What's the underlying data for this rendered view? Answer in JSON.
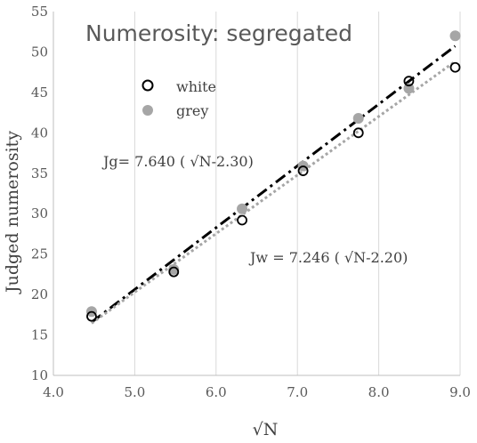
{
  "chart_data": {
    "type": "scatter",
    "title": "Numerosity: segregated",
    "xlabel": "√N",
    "ylabel": "Judged numerosity",
    "xlim": [
      4.0,
      9.0
    ],
    "ylim": [
      10,
      55
    ],
    "xticks": [
      "4.0",
      "5.0",
      "6.0",
      "7.0",
      "8.0",
      "9.0"
    ],
    "yticks": [
      "10",
      "15",
      "20",
      "25",
      "30",
      "35",
      "40",
      "45",
      "50",
      "55"
    ],
    "grid": "vertical",
    "legend_position": "top-left",
    "series": [
      {
        "name": "white",
        "marker": "open-circle",
        "color": "#000000",
        "x": [
          4.47,
          5.48,
          6.32,
          7.07,
          7.75,
          8.37,
          8.94
        ],
        "y": [
          17.3,
          22.8,
          29.2,
          35.3,
          40.0,
          46.4,
          48.1
        ]
      },
      {
        "name": "grey",
        "marker": "filled-circle",
        "color": "#a6a6a6",
        "x": [
          4.47,
          5.48,
          6.32,
          7.07,
          7.75,
          8.37,
          8.94
        ],
        "y": [
          17.9,
          23.1,
          30.6,
          35.9,
          41.8,
          45.5,
          52.0
        ]
      }
    ],
    "fits": [
      {
        "series": "grey",
        "style": "dash-dot",
        "color": "#000000",
        "slope": 7.64,
        "intercept_sqrtN": 2.3,
        "x_range": [
          4.47,
          8.94
        ]
      },
      {
        "series": "white",
        "style": "dotted",
        "color": "#a6a6a6",
        "slope": 7.246,
        "intercept_sqrtN": 2.2,
        "x_range": [
          4.47,
          8.94
        ]
      }
    ],
    "annotations": [
      {
        "text": "Jg= 7.640 ( √N-2.30)"
      },
      {
        "text": "Jw = 7.246 ( √N-2.20)"
      }
    ]
  }
}
